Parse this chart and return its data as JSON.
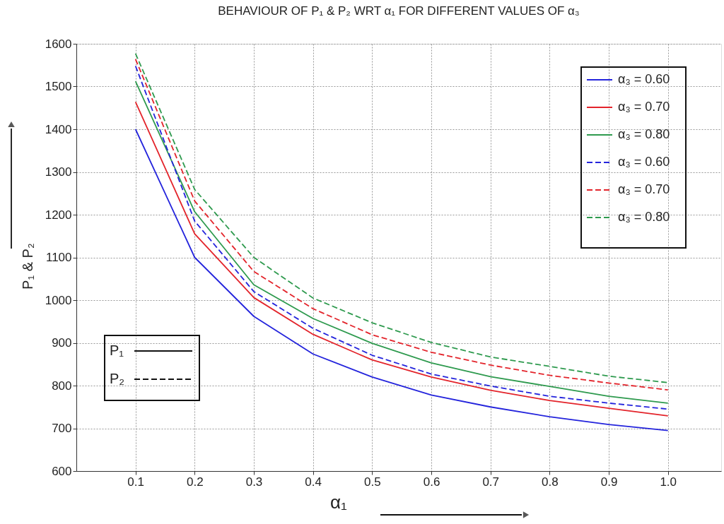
{
  "chart_data": {
    "type": "line",
    "title": "BEHAVIOUR OF P₁ & P₂ WRT α₁ FOR DIFFERENT VALUES OF α₃",
    "xlabel": "α₁",
    "ylabel": "P₁ & P₂",
    "x": [
      0.1,
      0.2,
      0.3,
      0.4,
      0.5,
      0.6,
      0.7,
      0.8,
      0.9,
      1.0
    ],
    "series": [
      {
        "name": "α₃ = 0.60",
        "color": "#2424dc",
        "line_style": "solid",
        "values": [
          1400,
          1100,
          962,
          874,
          820,
          778,
          750,
          727,
          709,
          695
        ]
      },
      {
        "name": "α₃ = 0.70",
        "color": "#e3242b",
        "line_style": "solid",
        "values": [
          1464,
          1155,
          1006,
          920,
          860,
          820,
          789,
          765,
          747,
          729
        ]
      },
      {
        "name": "α₃ = 0.80",
        "color": "#2e9a4e",
        "line_style": "solid",
        "values": [
          1512,
          1207,
          1036,
          957,
          899,
          853,
          821,
          798,
          775,
          759
        ]
      },
      {
        "name": "α₃ = 0.60",
        "color": "#2424dc",
        "line_style": "dashed",
        "values": [
          1548,
          1185,
          1020,
          934,
          871,
          827,
          799,
          775,
          759,
          745
        ]
      },
      {
        "name": "α₃ = 0.70",
        "color": "#e3242b",
        "line_style": "dashed",
        "values": [
          1564,
          1232,
          1067,
          980,
          919,
          878,
          848,
          824,
          806,
          790
        ]
      },
      {
        "name": "α₃ = 0.80",
        "color": "#2e9a4e",
        "line_style": "dashed",
        "values": [
          1577,
          1259,
          1100,
          1005,
          947,
          901,
          867,
          845,
          822,
          807
        ]
      }
    ],
    "xlim": [
      0,
      1.09
    ],
    "xticks": [
      0.1,
      0.2,
      0.3,
      0.4,
      0.5,
      0.6,
      0.7,
      0.8,
      0.9,
      {
        "value": 1.0,
        "label": "1.0"
      }
    ],
    "ylim": [
      600,
      1600
    ],
    "yticks": [
      600,
      700,
      800,
      900,
      1000,
      1100,
      1200,
      1300,
      1400,
      1500,
      1600
    ],
    "grid": true,
    "legend": "top right",
    "marker": "none",
    "annotations": [
      "P₁",
      "P₂"
    ]
  }
}
